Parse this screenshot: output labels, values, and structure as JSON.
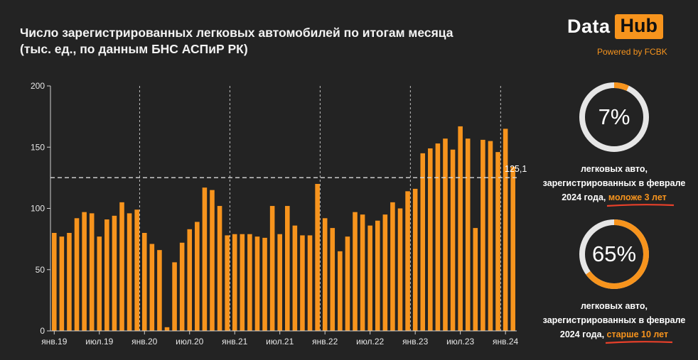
{
  "title_line1": "Число зарегистрированных легковых автомобилей по итогам месяца",
  "title_line2": "(тыс. ед., по данным БНС АСПиР РК)",
  "brand": {
    "data": "Data",
    "hub": "Hub",
    "powered": "Powered by FCBK",
    "accent": "#f7941d"
  },
  "chart_data": {
    "type": "bar",
    "y_ticks": [
      "0",
      "50",
      "100",
      "150",
      "200"
    ],
    "ylim": [
      0,
      200
    ],
    "x_tick_labels": [
      "янв.19",
      "июл.19",
      "янв.20",
      "июл.20",
      "янв.21",
      "июл.21",
      "янв.22",
      "июл.22",
      "янв.23",
      "июл.23",
      "янв.24"
    ],
    "categories": [
      "2019-01",
      "2019-02",
      "2019-03",
      "2019-04",
      "2019-05",
      "2019-06",
      "2019-07",
      "2019-08",
      "2019-09",
      "2019-10",
      "2019-11",
      "2019-12",
      "2020-01",
      "2020-02",
      "2020-03",
      "2020-04",
      "2020-05",
      "2020-06",
      "2020-07",
      "2020-08",
      "2020-09",
      "2020-10",
      "2020-11",
      "2020-12",
      "2021-01",
      "2021-02",
      "2021-03",
      "2021-04",
      "2021-05",
      "2021-06",
      "2021-07",
      "2021-08",
      "2021-09",
      "2021-10",
      "2021-11",
      "2021-12",
      "2022-01",
      "2022-02",
      "2022-03",
      "2022-04",
      "2022-05",
      "2022-06",
      "2022-07",
      "2022-08",
      "2022-09",
      "2022-10",
      "2022-11",
      "2022-12",
      "2023-01",
      "2023-02",
      "2023-03",
      "2023-04",
      "2023-05",
      "2023-06",
      "2023-07",
      "2023-08",
      "2023-09",
      "2023-10",
      "2023-11",
      "2023-12",
      "2024-01",
      "2024-02"
    ],
    "values": [
      80,
      77,
      80,
      92,
      97,
      96,
      77,
      91,
      94,
      105,
      96,
      99,
      80,
      71,
      66,
      3,
      56,
      72,
      83,
      89,
      117,
      115,
      102,
      78,
      79,
      79,
      79,
      77,
      76,
      102,
      79,
      102,
      86,
      78,
      78,
      120,
      92,
      84,
      65,
      77,
      97,
      95,
      86,
      90,
      95,
      105,
      100,
      114,
      116,
      145,
      149,
      153,
      157,
      148,
      167,
      157,
      84,
      156,
      155,
      146,
      165,
      134
    ],
    "average_line": 125.1,
    "average_label": "125,1",
    "bar_color": "#f7941d",
    "grid": false
  },
  "stats": [
    {
      "value": "7%",
      "percent": 7,
      "line1": "легковых авто,",
      "line2": "зарегистрированных в феврале",
      "line3_prefix": "2024 года, ",
      "highlight": "моложе 3 лет"
    },
    {
      "value": "65%",
      "percent": 65,
      "line1": "легковых авто,",
      "line2": "зарегистрированных в феврале",
      "line3_prefix": "2024 года, ",
      "highlight": "старше 10 лет"
    }
  ]
}
